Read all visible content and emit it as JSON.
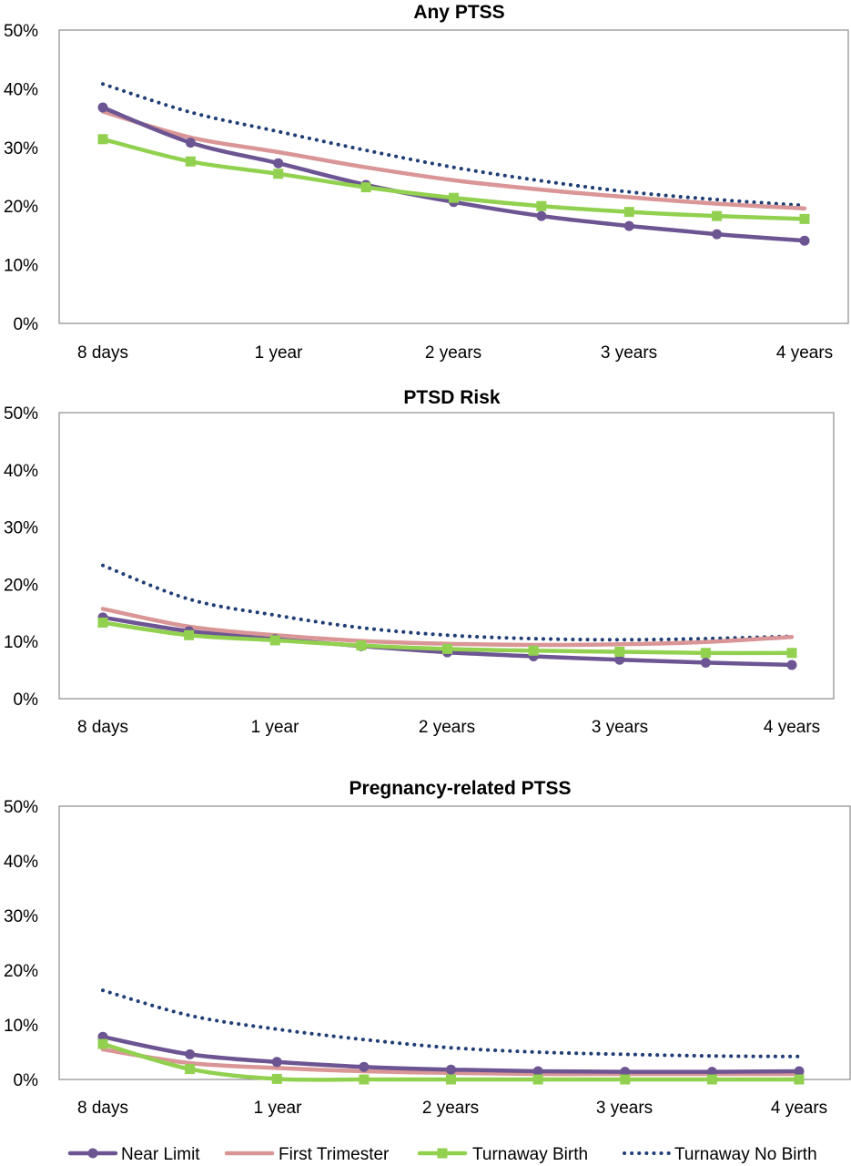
{
  "chart_data": [
    {
      "type": "line",
      "title": "Any PTSS",
      "x": [
        0.5,
        1,
        1.5,
        2,
        2.5,
        3,
        3.5,
        4,
        4.5
      ],
      "categories": [
        "8 days",
        "1 year",
        "2 years",
        "3 years",
        "4 years"
      ],
      "ylim": [
        0,
        50
      ],
      "yticks": [
        "0%",
        "10%",
        "20%",
        "30%",
        "40%",
        "50%"
      ],
      "series": [
        {
          "name": "Near Limit",
          "values": [
            36.8,
            30.8,
            27.3,
            23.6,
            20.7,
            18.3,
            16.6,
            15.2,
            14.1
          ]
        },
        {
          "name": "First Trimester",
          "values": [
            36.1,
            31.7,
            29.2,
            26.6,
            24.4,
            22.8,
            21.5,
            20.4,
            19.6
          ]
        },
        {
          "name": "Turnaway Birth",
          "values": [
            31.4,
            27.6,
            25.5,
            23.2,
            21.4,
            20.0,
            19.0,
            18.3,
            17.8
          ]
        },
        {
          "name": "Turnaway  No Birth",
          "values": [
            40.8,
            36.0,
            32.7,
            29.5,
            26.6,
            24.3,
            22.4,
            21.1,
            20.1
          ]
        }
      ]
    },
    {
      "type": "line",
      "title": "PTSD Risk",
      "x": [
        0.5,
        1,
        1.5,
        2,
        2.5,
        3,
        3.5,
        4,
        4.5
      ],
      "categories": [
        "8 days",
        "1 year",
        "2 years",
        "3 years",
        "4 years"
      ],
      "ylim": [
        0,
        50
      ],
      "yticks": [
        "0%",
        "10%",
        "20%",
        "30%",
        "40%",
        "50%"
      ],
      "series": [
        {
          "name": "Near Limit",
          "values": [
            14.2,
            11.8,
            10.4,
            9.2,
            8.1,
            7.4,
            6.8,
            6.3,
            5.9
          ]
        },
        {
          "name": "First Trimester",
          "values": [
            15.7,
            12.6,
            11.1,
            10.1,
            9.6,
            9.4,
            9.5,
            9.9,
            10.8
          ]
        },
        {
          "name": "Turnaway Birth",
          "values": [
            13.3,
            11.1,
            10.2,
            9.3,
            8.7,
            8.4,
            8.2,
            8.0,
            8.0
          ]
        },
        {
          "name": "Turnaway  No Birth",
          "values": [
            23.3,
            17.4,
            14.6,
            12.4,
            11.1,
            10.5,
            10.3,
            10.5,
            10.9
          ]
        }
      ]
    },
    {
      "type": "line",
      "title": "Pregnancy-related PTSS",
      "x": [
        0.5,
        1,
        1.5,
        2,
        2.5,
        3,
        3.5,
        4,
        4.5
      ],
      "categories": [
        "8 days",
        "1 year",
        "2 years",
        "3 years",
        "4 years"
      ],
      "ylim": [
        0,
        50
      ],
      "yticks": [
        "0%",
        "10%",
        "20%",
        "30%",
        "40%",
        "50%"
      ],
      "series": [
        {
          "name": "Near Limit",
          "values": [
            7.8,
            4.6,
            3.2,
            2.3,
            1.8,
            1.5,
            1.4,
            1.4,
            1.5
          ]
        },
        {
          "name": "First Trimester",
          "values": [
            5.5,
            3.0,
            2.1,
            1.5,
            1.2,
            1.0,
            1.0,
            1.0,
            1.0
          ]
        },
        {
          "name": "Turnaway Birth",
          "values": [
            6.5,
            1.9,
            0.1,
            0.0,
            0.0,
            0.0,
            0.0,
            0.0,
            0.0
          ]
        },
        {
          "name": "Turnaway  No Birth",
          "values": [
            16.3,
            11.7,
            9.2,
            7.3,
            5.8,
            5.0,
            4.6,
            4.3,
            4.2
          ]
        }
      ]
    }
  ],
  "legend": {
    "items": [
      {
        "label": "Near Limit",
        "color": "#6c5592",
        "marker": "circle",
        "style": "solid"
      },
      {
        "label": "First Trimester",
        "color": "#da9696",
        "marker": "none",
        "style": "solid"
      },
      {
        "label": "Turnaway Birth",
        "color": "#92d14f",
        "marker": "square",
        "style": "solid"
      },
      {
        "label": "Turnaway  No Birth",
        "color": "#1f3f74",
        "marker": "none",
        "style": "dotted"
      }
    ]
  },
  "colors": {
    "near_limit": "#6c5592",
    "first_trimester": "#da9696",
    "turnaway_birth": "#92d14f",
    "turnaway_no_birth": "#1f3f74",
    "axis": "#808080"
  }
}
